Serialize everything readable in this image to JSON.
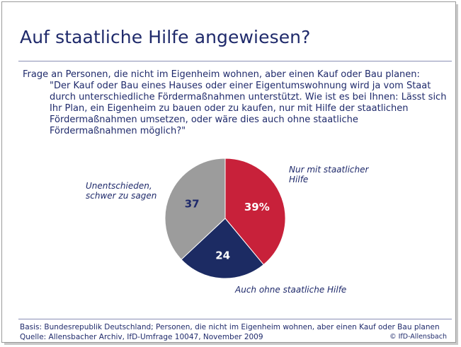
{
  "title": "Auf staatliche Hilfe angewiesen?",
  "question": {
    "intro": "Frage an Personen, die nicht im Eigenheim wohnen, aber einen Kauf oder Bau planen:",
    "quote": "\"Der Kauf oder Bau eines Hauses oder einer Eigentumswohnung wird ja vom Staat durch unterschiedliche Fördermaßnahmen unterstützt. Wie ist es bei Ihnen: Lässt sich Ihr Plan, ein Eigenheim zu bauen oder zu kaufen, nur mit Hilfe der staatlichen Fördermaßnahmen umsetzen, oder wäre dies auch ohne staatliche Fördermaßnahmen möglich?\""
  },
  "chart_data": {
    "type": "pie",
    "unit": "%",
    "slices": [
      {
        "label_lines": [
          "Nur mit staatlicher",
          "Hilfe"
        ],
        "value": 39,
        "display": "39%",
        "color": "#c8213a",
        "text_color": "#ffffff"
      },
      {
        "label_lines": [
          "Auch ohne staatliche Hilfe"
        ],
        "value": 24,
        "display": "24",
        "color": "#1c2b63",
        "text_color": "#ffffff"
      },
      {
        "label_lines": [
          "Unentschieden,",
          "schwer zu sagen"
        ],
        "value": 37,
        "display": "37",
        "color": "#9c9c9c",
        "text_color": "#1f2a6b"
      }
    ]
  },
  "footer": {
    "basis": "Basis: Bundesrepublik Deutschland; Personen, die nicht im Eigenheim wohnen, aber einen Kauf oder Bau planen",
    "source": "Quelle: Allensbacher Archiv, IfD-Umfrage 10047, November 2009",
    "copyright": "© IfD-Allensbach"
  }
}
